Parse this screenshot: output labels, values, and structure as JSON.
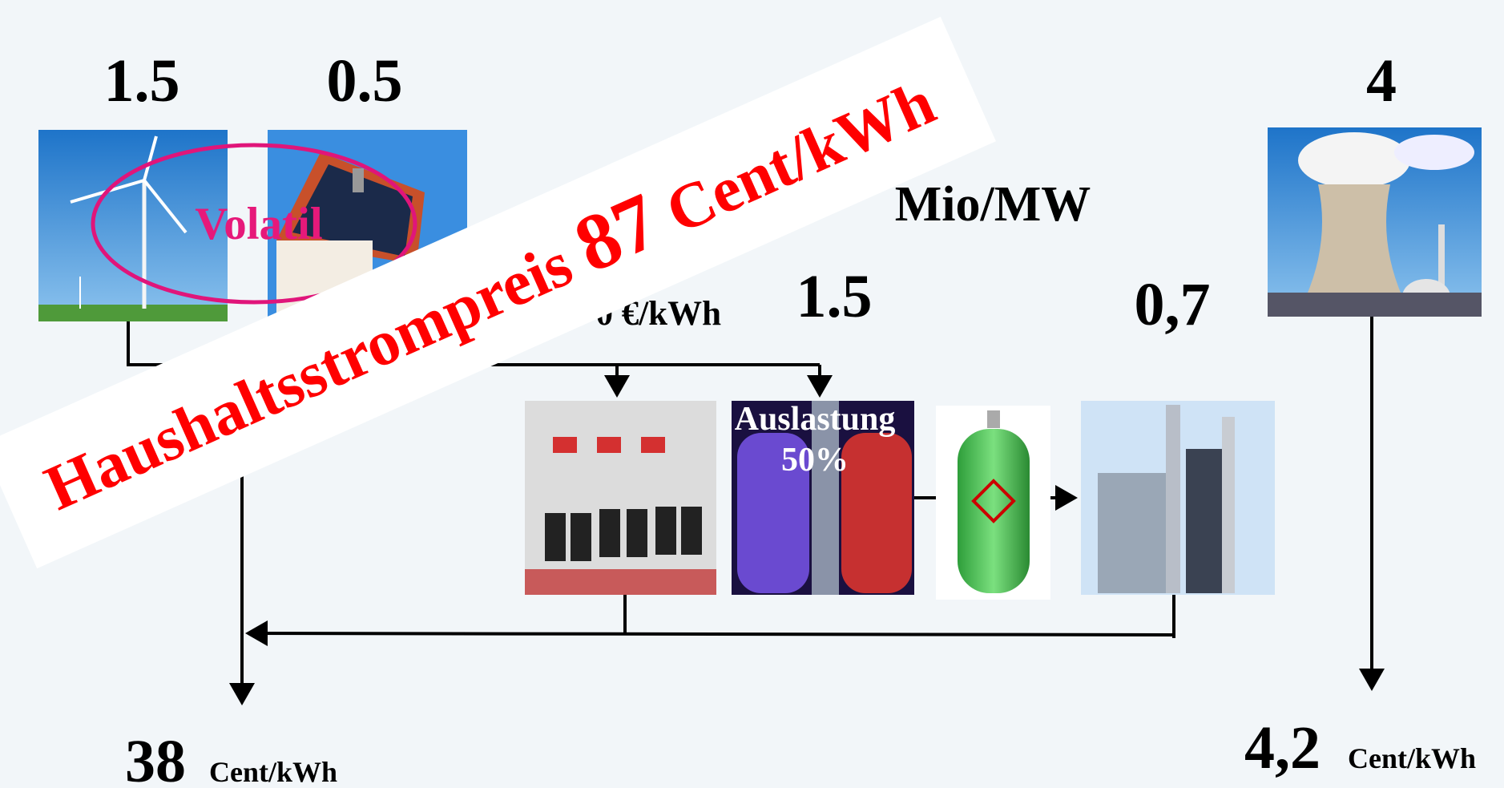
{
  "costs": {
    "wind": "1.5",
    "solar": "0.5",
    "nuclear": "4",
    "unit": "Mio/MW",
    "electrolyzer": "1.5",
    "power_plant": "0,7"
  },
  "storage_price": "0 €/kWh",
  "volatile_label": "Volatil",
  "electrolyzer_label": {
    "line1": "Auslastung",
    "line2": "50%"
  },
  "results": {
    "renewable": {
      "value": "38",
      "unit": "Cent/kWh"
    },
    "nuclear": {
      "value": "4,2",
      "unit": "Cent/kWh"
    }
  },
  "banner": {
    "text": "Haushaltsstrompreis",
    "value": "87",
    "unit": "Cent/kWh"
  }
}
